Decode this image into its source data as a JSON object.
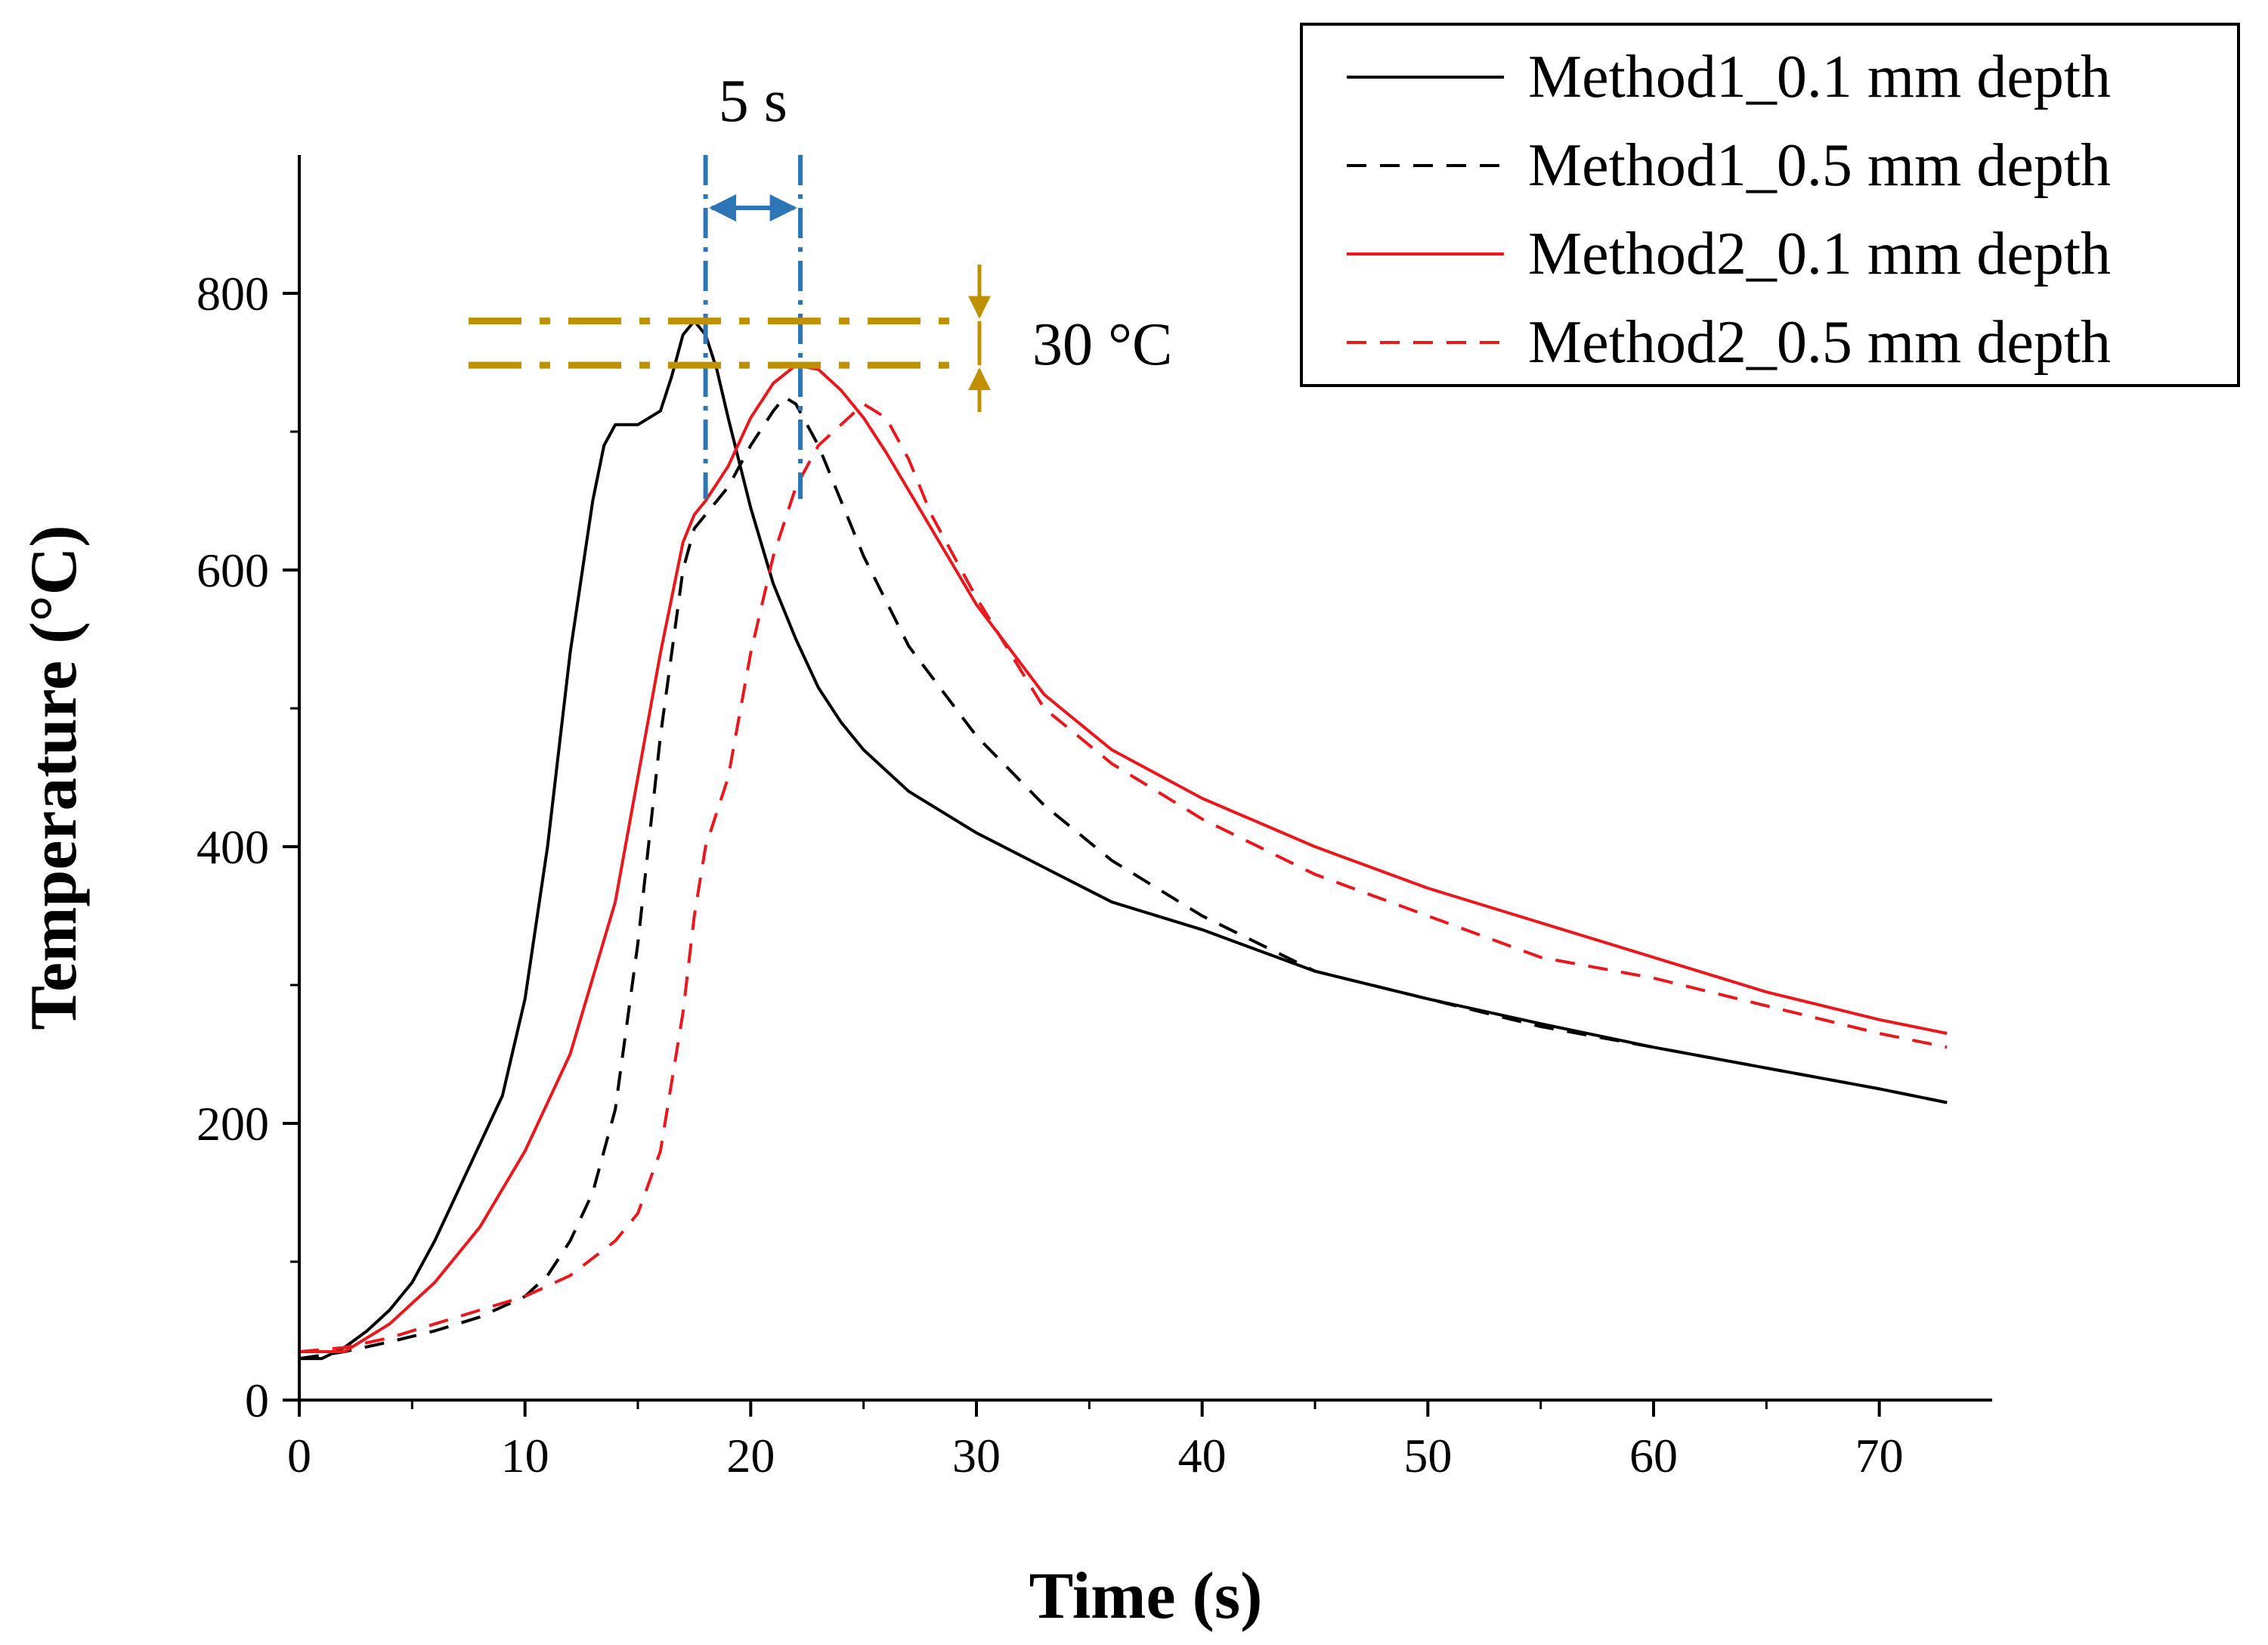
{
  "chart_data": {
    "type": "line",
    "xlabel": "Time (s)",
    "ylabel": "Temperature (°C)",
    "xlim": [
      0,
      75
    ],
    "ylim": [
      0,
      900
    ],
    "x_ticks": [
      0,
      10,
      20,
      30,
      40,
      50,
      60,
      70
    ],
    "y_ticks": [
      0,
      200,
      400,
      600,
      800
    ],
    "grid": false,
    "legend_position": "top-right",
    "series": [
      {
        "name": "Method1_0.1 mm depth",
        "color": "#000000",
        "dash": "solid",
        "x": [
          0,
          1,
          2,
          3,
          4,
          5,
          6,
          7,
          8,
          9,
          10,
          11,
          12,
          13,
          13.5,
          14,
          15,
          16,
          16.5,
          17,
          17.5,
          18,
          18.5,
          19,
          20,
          21,
          22,
          23,
          24,
          25,
          27,
          30,
          33,
          36,
          40,
          45,
          50,
          55,
          60,
          65,
          70,
          73
        ],
        "y": [
          30,
          30,
          38,
          50,
          65,
          85,
          115,
          150,
          185,
          220,
          290,
          400,
          540,
          650,
          690,
          705,
          705,
          715,
          740,
          770,
          780,
          770,
          745,
          710,
          645,
          590,
          550,
          515,
          490,
          470,
          440,
          410,
          385,
          360,
          340,
          310,
          290,
          272,
          255,
          240,
          225,
          215
        ]
      },
      {
        "name": "Method1_0.5 mm depth",
        "color": "#000000",
        "dash": "dashed",
        "x": [
          0,
          2,
          4,
          6,
          8,
          10,
          11,
          12,
          13,
          14,
          15,
          16,
          17,
          17.5,
          18,
          19,
          20,
          21,
          21.5,
          22,
          23,
          24,
          25,
          27,
          30,
          33,
          36,
          40,
          45,
          50,
          55,
          60,
          65,
          70,
          73
        ],
        "y": [
          30,
          35,
          42,
          50,
          60,
          75,
          90,
          115,
          150,
          210,
          330,
          480,
          600,
          630,
          640,
          660,
          690,
          715,
          725,
          720,
          690,
          650,
          610,
          545,
          480,
          430,
          390,
          350,
          310,
          290,
          270,
          255,
          240,
          225,
          215
        ]
      },
      {
        "name": "Method2_0.1 mm depth",
        "color": "#e8181c",
        "dash": "solid",
        "x": [
          0,
          2,
          4,
          6,
          8,
          10,
          12,
          14,
          15,
          16,
          17,
          17.5,
          18,
          19,
          20,
          21,
          22,
          23,
          24,
          25,
          26,
          28,
          30,
          33,
          36,
          40,
          45,
          50,
          55,
          60,
          65,
          70,
          73
        ],
        "y": [
          35,
          35,
          55,
          85,
          125,
          180,
          250,
          360,
          450,
          540,
          620,
          640,
          650,
          675,
          710,
          735,
          748,
          745,
          730,
          710,
          685,
          630,
          575,
          510,
          470,
          435,
          400,
          370,
          345,
          320,
          295,
          275,
          265
        ]
      },
      {
        "name": "Method2_0.5 mm depth",
        "color": "#e8181c",
        "dash": "dashed",
        "x": [
          0,
          2,
          4,
          6,
          8,
          10,
          12,
          14,
          15,
          16,
          17,
          17.5,
          18,
          19,
          20,
          21,
          22,
          23,
          24,
          25,
          26,
          27,
          28,
          30,
          33,
          36,
          40,
          45,
          50,
          55,
          60,
          65,
          70,
          73
        ],
        "y": [
          35,
          38,
          45,
          55,
          65,
          75,
          90,
          115,
          135,
          180,
          280,
          350,
          400,
          450,
          540,
          610,
          660,
          690,
          705,
          720,
          710,
          680,
          640,
          580,
          500,
          460,
          420,
          380,
          350,
          320,
          305,
          285,
          265,
          255
        ]
      }
    ],
    "annotations": {
      "time_gap": {
        "label": "5 s",
        "x_from": 18,
        "x_to": 22.2,
        "color": "#2e75b6"
      },
      "temp_gap": {
        "label": "30 °C",
        "y_from": 780,
        "y_to": 748,
        "color": "#bf9000"
      }
    }
  }
}
